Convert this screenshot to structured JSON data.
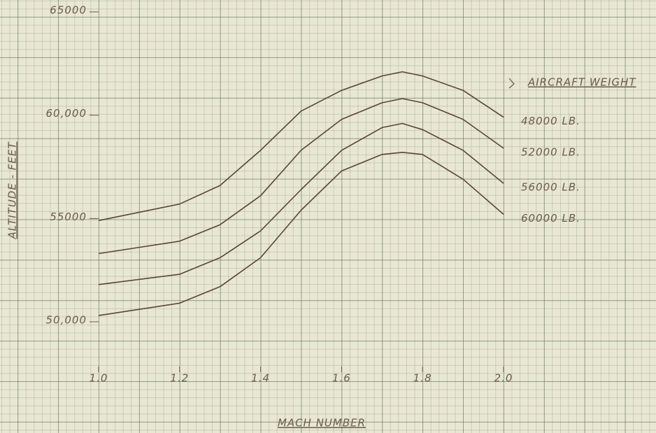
{
  "chart_data": {
    "type": "line",
    "x_label": "MACH NUMBER",
    "y_label": "ALTITUDE - FEET",
    "legend_title": "AIRCRAFT WEIGHT",
    "x": [
      1.0,
      1.2,
      1.3,
      1.4,
      1.5,
      1.6,
      1.7,
      1.75,
      1.8,
      1.9,
      2.0
    ],
    "series": [
      {
        "name": "48000 LB.",
        "color": "#5a4438",
        "values": [
          54900,
          55700,
          56600,
          58300,
          60200,
          61200,
          61900,
          62100,
          61900,
          61200,
          59900
        ]
      },
      {
        "name": "52000 LB.",
        "color": "#5a4438",
        "values": [
          53300,
          53900,
          54700,
          56100,
          58300,
          59800,
          60600,
          60800,
          60600,
          59800,
          58400
        ]
      },
      {
        "name": "56000 LB.",
        "color": "#5a4438",
        "values": [
          51800,
          52300,
          53100,
          54400,
          56400,
          58300,
          59400,
          59600,
          59300,
          58300,
          56700
        ]
      },
      {
        "name": "60000 LB.",
        "color": "#5a4438",
        "values": [
          50300,
          50900,
          51700,
          53100,
          55400,
          57300,
          58100,
          58200,
          58100,
          56900,
          55200
        ]
      }
    ],
    "xlim": [
      1.0,
      2.0
    ],
    "xticks": [
      {
        "value": 1,
        "label": "1.0"
      },
      1.2,
      1.4,
      1.6,
      1.8,
      {
        "value": 2,
        "label": "2.0"
      }
    ],
    "ylim": [
      50000,
      65000
    ],
    "yticks": [
      {
        "value": 50000,
        "label": "50,000"
      },
      55000,
      {
        "value": 60000,
        "label": "60,000"
      },
      65000
    ]
  }
}
